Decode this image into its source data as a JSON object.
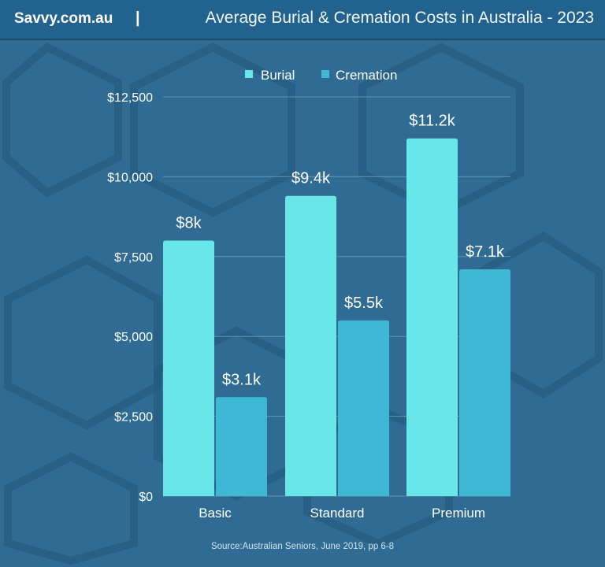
{
  "header": {
    "brand": "Savvy.com.au",
    "separator": "|",
    "title": "Average Burial & Cremation Costs in Australia - 2023"
  },
  "colors": {
    "burial": "#68e6e8",
    "cremation": "#3eb8d4",
    "header": "#22628e",
    "background": "#2f6b92"
  },
  "chart_data": {
    "type": "bar",
    "title": "Average Burial & Cremation Costs in Australia - 2023",
    "categories": [
      "Basic",
      "Standard",
      "Premium"
    ],
    "series": [
      {
        "name": "Burial",
        "values": [
          8000,
          9400,
          11200
        ],
        "labels": [
          "$8k",
          "$9.4k",
          "$11.2k"
        ]
      },
      {
        "name": "Cremation",
        "values": [
          3100,
          5500,
          7100
        ],
        "labels": [
          "$3.1k",
          "$5.5k",
          "$7.1k"
        ]
      }
    ],
    "yticks": [
      0,
      2500,
      5000,
      7500,
      10000,
      12500
    ],
    "ytick_labels": [
      "$0",
      "$2,500",
      "$5,000",
      "$7,500",
      "$10,000",
      "$12,500"
    ],
    "ylim": [
      0,
      12500
    ],
    "xlabel": "",
    "ylabel": "",
    "legend": "top-center",
    "grid": true,
    "source": "Source:Australian Seniors, June 2019, pp 6-8"
  }
}
